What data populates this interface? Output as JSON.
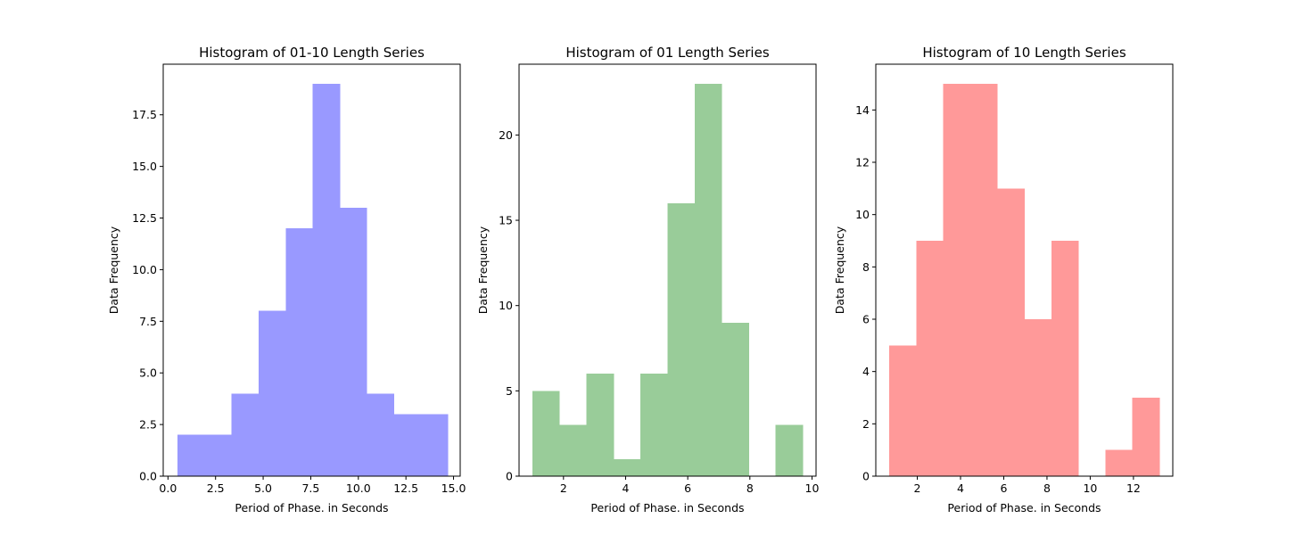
{
  "chart_data": [
    {
      "type": "bar",
      "title": "Histogram of 01-10 Length Series",
      "xlabel": "Period of Phase. in Seconds",
      "ylabel": "Data Frequency",
      "color": "#9999ff",
      "xlim": [
        -0.25,
        15.35
      ],
      "ylim": [
        0,
        19.95
      ],
      "xticks": [
        0.0,
        2.5,
        5.0,
        7.5,
        10.0,
        12.5,
        15.0
      ],
      "xtick_labels": [
        "0.0",
        "2.5",
        "5.0",
        "7.5",
        "10.0",
        "12.5",
        "15.0"
      ],
      "yticks": [
        0.0,
        2.5,
        5.0,
        7.5,
        10.0,
        12.5,
        15.0,
        17.5
      ],
      "ytick_labels": [
        "0.0",
        "2.5",
        "5.0",
        "7.5",
        "10.0",
        "12.5",
        "15.0",
        "17.5"
      ],
      "bin_edges": [
        0.5,
        1.92,
        3.34,
        4.76,
        6.18,
        7.6,
        9.02,
        10.44,
        11.86,
        13.28,
        14.7
      ],
      "values": [
        2,
        2,
        4,
        8,
        12,
        19,
        13,
        4,
        3,
        3
      ],
      "grid": false
    },
    {
      "type": "bar",
      "title": "Histogram of 01 Length Series",
      "xlabel": "Period of Phase. in Seconds",
      "ylabel": "Data Frequency",
      "color": "#99cc99",
      "xlim": [
        0.57,
        10.13
      ],
      "ylim": [
        0,
        24.15
      ],
      "xticks": [
        2,
        4,
        6,
        8,
        10
      ],
      "xtick_labels": [
        "2",
        "4",
        "6",
        "8",
        "10"
      ],
      "yticks": [
        0,
        5,
        10,
        15,
        20
      ],
      "ytick_labels": [
        "0",
        "5",
        "10",
        "15",
        "20"
      ],
      "bin_edges": [
        1.0,
        1.87,
        2.74,
        3.61,
        4.48,
        5.35,
        6.22,
        7.09,
        7.96,
        8.83,
        9.7
      ],
      "values": [
        5,
        3,
        6,
        1,
        6,
        16,
        23,
        9,
        0,
        3
      ],
      "grid": false
    },
    {
      "type": "bar",
      "title": "Histogram of 10 Length Series",
      "xlabel": "Period of Phase. in Seconds",
      "ylabel": "Data Frequency",
      "color": "#ff9999",
      "xlim": [
        0.08,
        13.82
      ],
      "ylim": [
        0,
        15.75
      ],
      "xticks": [
        2,
        4,
        6,
        8,
        10,
        12
      ],
      "xtick_labels": [
        "2",
        "4",
        "6",
        "8",
        "10",
        "12"
      ],
      "yticks": [
        0,
        2,
        4,
        6,
        8,
        10,
        12,
        14
      ],
      "ytick_labels": [
        "0",
        "2",
        "4",
        "6",
        "8",
        "10",
        "12",
        "14"
      ],
      "bin_edges": [
        0.7,
        1.95,
        3.2,
        4.45,
        5.7,
        6.95,
        8.2,
        9.45,
        10.7,
        11.95,
        13.2
      ],
      "values": [
        5,
        9,
        15,
        15,
        11,
        6,
        9,
        0,
        1,
        3
      ],
      "grid": false
    }
  ]
}
